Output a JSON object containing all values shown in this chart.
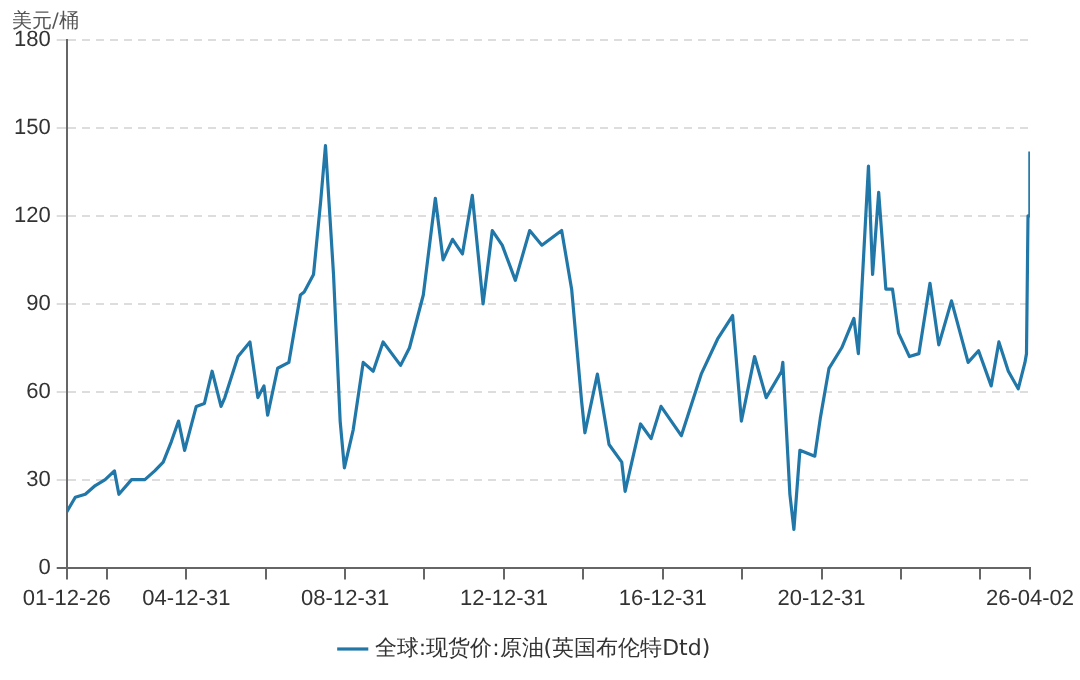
{
  "chart_data": {
    "type": "line",
    "ylabel": "美元/桶",
    "legend": "bottom",
    "grid": "y",
    "marker": "none",
    "line_style": "solid",
    "xlim": [
      "2001-12-26",
      "2026-04-02"
    ],
    "xticks": [
      {
        "value": "2001-12-26",
        "label": "01-12-26"
      },
      {
        "value": "2002-12-31",
        "label": null
      },
      {
        "value": "2004-12-31",
        "label": "04-12-31"
      },
      {
        "value": "2006-12-31",
        "label": null
      },
      {
        "value": "2008-12-31",
        "label": "08-12-31"
      },
      {
        "value": "2010-12-31",
        "label": null
      },
      {
        "value": "2012-12-31",
        "label": "12-12-31"
      },
      {
        "value": "2014-12-31",
        "label": null
      },
      {
        "value": "2016-12-31",
        "label": "16-12-31"
      },
      {
        "value": "2018-12-31",
        "label": null
      },
      {
        "value": "2020-12-31",
        "label": "20-12-31"
      },
      {
        "value": "2022-12-31",
        "label": null
      },
      {
        "value": "2024-12-31",
        "label": null
      },
      {
        "value": "2026-04-02",
        "label": "26-04-02"
      }
    ],
    "ylim": [
      0,
      180
    ],
    "yticks": [
      0,
      30,
      60,
      90,
      120,
      150,
      180
    ],
    "x": [
      "2001-12-26",
      "2002-03-15",
      "2002-06-15",
      "2002-09-15",
      "2002-12-15",
      "2003-03-10",
      "2003-04-20",
      "2003-08-15",
      "2003-12-15",
      "2004-03-15",
      "2004-06-01",
      "2004-08-15",
      "2004-10-20",
      "2004-12-15",
      "2005-04-01",
      "2005-06-15",
      "2005-08-25",
      "2005-11-15",
      "2005-12-20",
      "2006-04-20",
      "2006-08-08",
      "2006-10-20",
      "2006-12-15",
      "2007-01-18",
      "2007-04-20",
      "2007-08-01",
      "2007-11-15",
      "2007-12-20",
      "2008-03-15",
      "2008-05-20",
      "2008-07-03",
      "2008-09-15",
      "2008-11-15",
      "2008-12-24",
      "2009-03-15",
      "2009-06-15",
      "2009-09-15",
      "2009-12-15",
      "2010-05-25",
      "2010-08-15",
      "2010-12-20",
      "2011-04-10",
      "2011-06-20",
      "2011-09-15",
      "2011-12-15",
      "2012-03-15",
      "2012-06-22",
      "2012-09-15",
      "2012-12-15",
      "2013-04-15",
      "2013-08-25",
      "2013-12-15",
      "2014-06-15",
      "2014-09-15",
      "2014-12-15",
      "2015-01-15",
      "2015-05-10",
      "2015-08-25",
      "2015-12-20",
      "2016-01-20",
      "2016-06-10",
      "2016-09-15",
      "2016-12-15",
      "2017-06-20",
      "2017-12-20",
      "2018-05-20",
      "2018-10-05",
      "2018-12-25",
      "2019-04-25",
      "2019-08-10",
      "2019-12-30",
      "2020-01-10",
      "2020-03-15",
      "2020-04-21",
      "2020-06-15",
      "2020-10-30",
      "2020-12-20",
      "2021-03-10",
      "2021-07-05",
      "2021-10-25",
      "2021-12-05",
      "2022-03-08",
      "2022-04-15",
      "2022-06-10",
      "2022-08-15",
      "2022-10-15",
      "2022-12-10",
      "2023-03-20",
      "2023-06-15",
      "2023-09-25",
      "2023-12-15",
      "2024-04-10",
      "2024-09-10",
      "2024-12-15",
      "2025-04-10",
      "2025-06-20",
      "2025-09-15",
      "2025-12-15",
      "2026-02-15",
      "2026-03-01",
      "2026-03-15",
      "2026-04-01"
    ],
    "series": [
      {
        "name": "全球:现货价:原油(英国布伦特Dtd)",
        "color": "#2178a8",
        "values": [
          19,
          24,
          25,
          28,
          30,
          33,
          25,
          30,
          30,
          33,
          36,
          43,
          50,
          40,
          55,
          56,
          67,
          55,
          58,
          72,
          77,
          58,
          62,
          52,
          68,
          70,
          93,
          94,
          100,
          125,
          144,
          100,
          50,
          34,
          47,
          70,
          67,
          77,
          69,
          75,
          93,
          126,
          105,
          112,
          107,
          127,
          90,
          115,
          110,
          98,
          115,
          110,
          115,
          95,
          57,
          46,
          66,
          42,
          36,
          26,
          49,
          44,
          55,
          45,
          66,
          78,
          86,
          50,
          72,
          58,
          67,
          70,
          25,
          13,
          40,
          38,
          51,
          68,
          75,
          85,
          73,
          137,
          100,
          128,
          95,
          95,
          80,
          72,
          73,
          97,
          76,
          91,
          70,
          74,
          62,
          77,
          67,
          61,
          70,
          73,
          120,
          142
        ]
      }
    ]
  }
}
